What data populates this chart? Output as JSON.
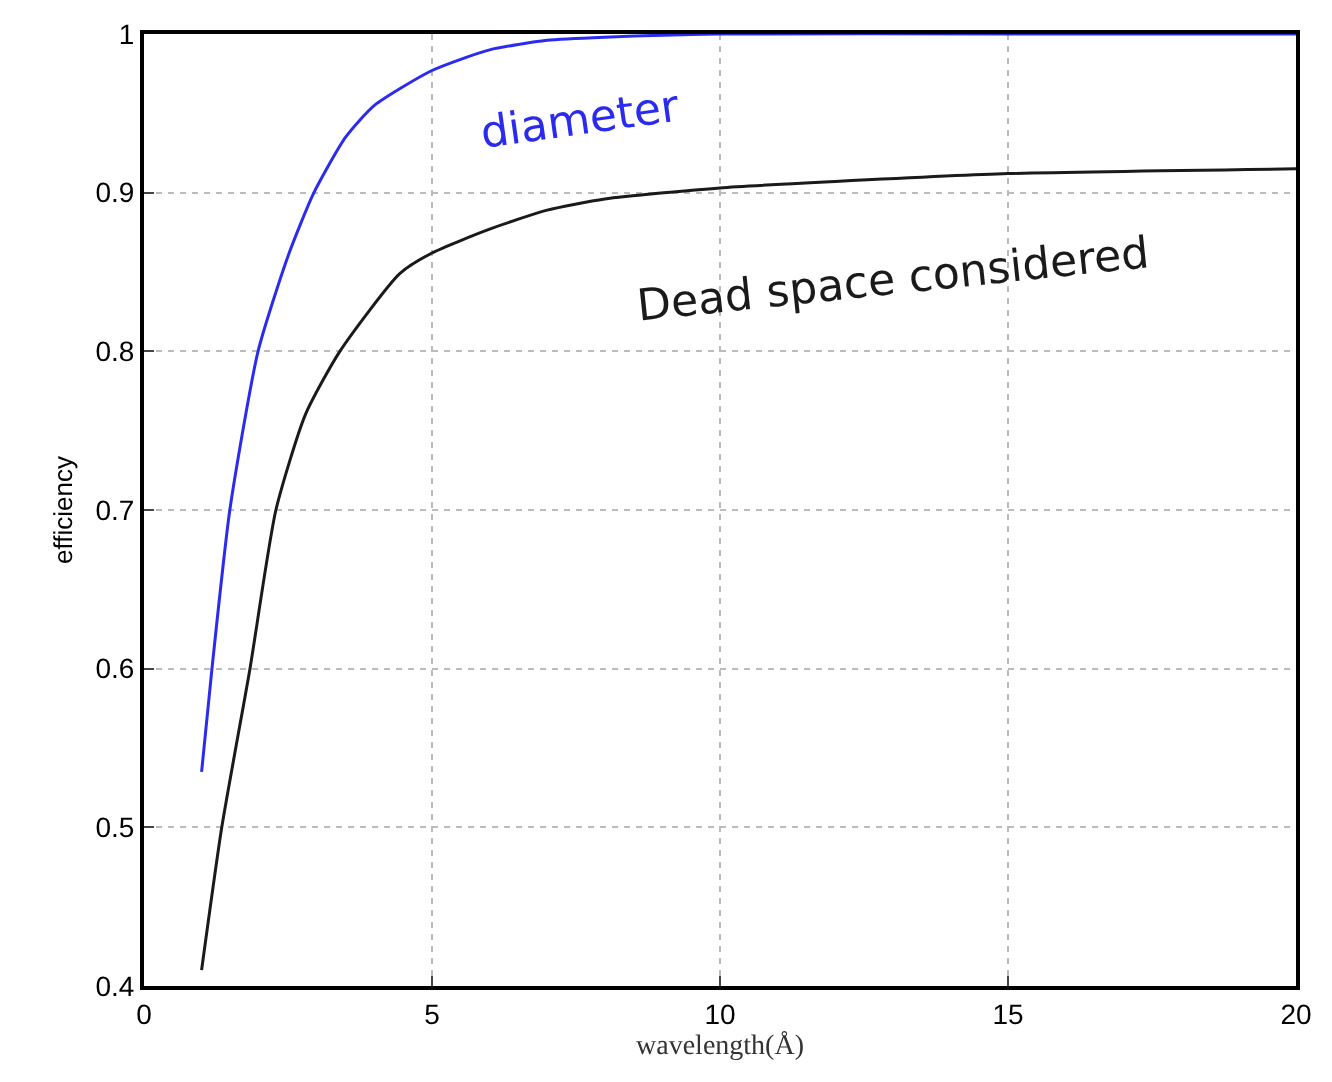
{
  "chart_data": {
    "type": "line",
    "xlabel": "wavelength(Å)",
    "ylabel": "efficiency",
    "xlim": [
      0,
      20
    ],
    "xticks": [
      0,
      5,
      10,
      15,
      20
    ],
    "ylim": [
      0.4,
      1
    ],
    "yticks": [
      0.4,
      0.5,
      0.6,
      0.7,
      0.8,
      0.9,
      1
    ],
    "grid": true,
    "legend": false,
    "line_style": "solid",
    "marker": "none",
    "series": [
      {
        "name": "diameter",
        "color": "#2b2bf0",
        "x": [
          1,
          1.18,
          1.49,
          1.98,
          2.5,
          2.95,
          3.5,
          4,
          5,
          6,
          7,
          8,
          10,
          15,
          20
        ],
        "values": [
          0.535,
          0.6,
          0.7,
          0.8,
          0.86,
          0.9,
          0.935,
          0.955,
          0.977,
          0.99,
          0.996,
          0.998,
          1,
          1,
          1
        ]
      },
      {
        "name": "Dead space considered",
        "color": "#1a1a1a",
        "x": [
          1,
          1.35,
          1.84,
          2.29,
          2.8,
          3.4,
          4.44,
          5,
          6,
          7,
          8,
          10,
          12,
          15,
          20
        ],
        "values": [
          0.41,
          0.5,
          0.6,
          0.7,
          0.76,
          0.8,
          0.849,
          0.862,
          0.877,
          0.889,
          0.896,
          0.903,
          0.907,
          0.912,
          0.915
        ]
      }
    ]
  }
}
